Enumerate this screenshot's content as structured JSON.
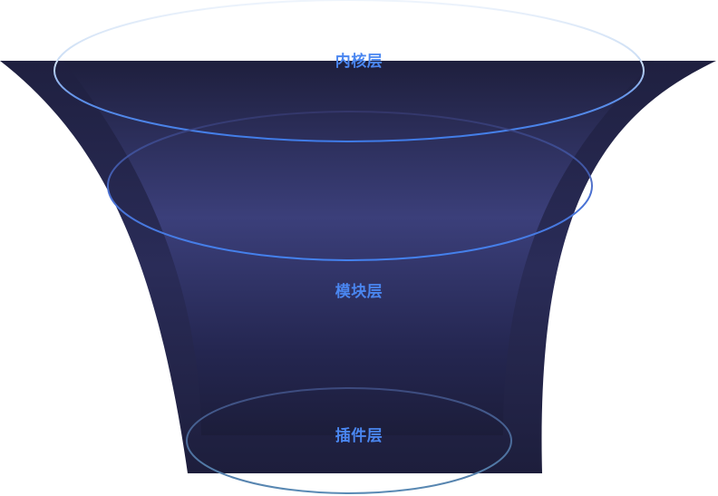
{
  "diagram": {
    "layers": [
      {
        "label": "内核层"
      },
      {
        "label": "模块层"
      },
      {
        "label": "插件层"
      }
    ],
    "colors": {
      "funnel_dark": "#1e1f3d",
      "funnel_mid": "#3b3f7a",
      "ring_blue": "#3f7be8",
      "ring_light": "#d4e3f7",
      "ring_teal": "#4d7fa8",
      "label_blue": "#4a86f0"
    }
  }
}
